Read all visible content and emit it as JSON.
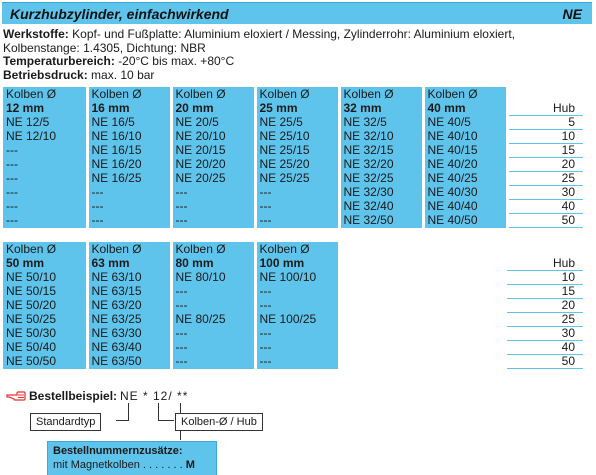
{
  "header": {
    "title": "Kurzhubzylinder, einfachwirkend",
    "code": "NE"
  },
  "info": {
    "materials_label": "Werkstoffe:",
    "materials_text": "Kopf- und Fußplatte: Aluminium eloxiert / Messing, Zylinderrohr: Aluminium eloxiert, Kolbenstange: 1.4305, Dichtung: NBR",
    "temp_label": "Temperaturbereich:",
    "temp_text": "-20°C bis max. +80°C",
    "pressure_label": "Betriebsdruck:",
    "pressure_text": "max. 10 bar"
  },
  "table1": {
    "piston_label": "Kolben Ø",
    "hub_label": "Hub",
    "columns": [
      "12 mm",
      "16 mm",
      "20 mm",
      "25 mm",
      "32 mm",
      "40 mm"
    ],
    "rows": [
      {
        "cells": [
          "NE 12/5",
          "NE 16/5",
          "NE 20/5",
          "NE 25/5",
          "NE 32/5",
          "NE 40/5"
        ],
        "hub": "5"
      },
      {
        "cells": [
          "NE 12/10",
          "NE 16/10",
          "NE 20/10",
          "NE 25/10",
          "NE 32/10",
          "NE 40/10"
        ],
        "hub": "10"
      },
      {
        "cells": [
          "---",
          "NE 16/15",
          "NE 20/15",
          "NE 25/15",
          "NE 32/15",
          "NE 40/15"
        ],
        "hub": "15"
      },
      {
        "cells": [
          "---",
          "NE 16/20",
          "NE 20/20",
          "NE 25/20",
          "NE 32/20",
          "NE 40/20"
        ],
        "hub": "20"
      },
      {
        "cells": [
          "---",
          "NE 16/25",
          "NE 20/25",
          "NE 25/25",
          "NE 32/25",
          "NE 40/25"
        ],
        "hub": "25"
      },
      {
        "cells": [
          "---",
          "---",
          "---",
          "---",
          "NE 32/30",
          "NE 40/30"
        ],
        "hub": "30"
      },
      {
        "cells": [
          "---",
          "---",
          "---",
          "---",
          "NE 32/40",
          "NE 40/40"
        ],
        "hub": "40"
      },
      {
        "cells": [
          "---",
          "---",
          "---",
          "---",
          "NE 32/50",
          "NE 40/50"
        ],
        "hub": "50"
      }
    ]
  },
  "table2": {
    "piston_label": "Kolben Ø",
    "hub_label": "Hub",
    "columns": [
      "50 mm",
      "63 mm",
      "80 mm",
      "100 mm"
    ],
    "rows": [
      {
        "cells": [
          "NE 50/10",
          "NE 63/10",
          "NE 80/10",
          "NE 100/10"
        ],
        "hub": "10"
      },
      {
        "cells": [
          "NE 50/15",
          "NE 63/15",
          "---",
          "---"
        ],
        "hub": "15"
      },
      {
        "cells": [
          "NE 50/20",
          "NE 63/20",
          "---",
          "---"
        ],
        "hub": "20"
      },
      {
        "cells": [
          "NE 50/25",
          "NE 63/25",
          "NE 80/25",
          "NE 100/25"
        ],
        "hub": "25"
      },
      {
        "cells": [
          "NE 50/30",
          "NE 63/30",
          "---",
          "---"
        ],
        "hub": "30"
      },
      {
        "cells": [
          "NE 50/40",
          "NE 63/40",
          "---",
          "---"
        ],
        "hub": "40"
      },
      {
        "cells": [
          "NE 50/50",
          "NE 63/50",
          "---",
          "---"
        ],
        "hub": "50"
      }
    ]
  },
  "order": {
    "icon": "pointing-hand-icon",
    "label": "Bestellbeispiel:",
    "code": "NE * 12/ **",
    "standard_label": "Standardtyp",
    "piston_hub_label": "Kolben-Ø / Hub",
    "addon_title": "Bestellnummernzusätze:",
    "addon_text": "mit Magnetkolben",
    "addon_dots": ". . . . . . .",
    "addon_code": "M"
  },
  "colors": {
    "accent": "#5ec4ec",
    "hand": "#e03030"
  }
}
